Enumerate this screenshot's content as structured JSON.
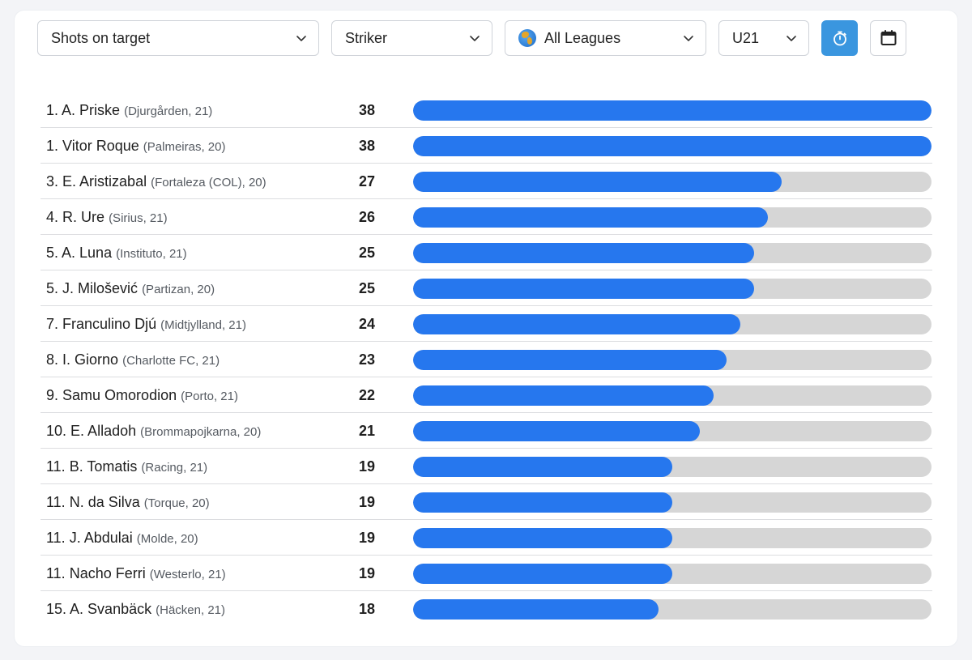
{
  "filters": {
    "metric": "Shots on target",
    "position": "Striker",
    "league": "All Leagues",
    "age": "U21"
  },
  "icons": {
    "league": "globe-icon",
    "timer": "stopwatch-icon",
    "calendar": "calendar-icon",
    "dropdown": "chevron-down-icon"
  },
  "colors": {
    "bar_fill": "#2677ee",
    "bar_track": "#d6d6d6",
    "active_button": "#3a96df"
  },
  "max_value": 38,
  "players": [
    {
      "rank": "1.",
      "name": "A. Priske",
      "club": "(Djurgården, 21)",
      "value": 38
    },
    {
      "rank": "1.",
      "name": "Vitor Roque",
      "club": "(Palmeiras, 20)",
      "value": 38
    },
    {
      "rank": "3.",
      "name": "E. Aristizabal",
      "club": "(Fortaleza (COL), 20)",
      "value": 27
    },
    {
      "rank": "4.",
      "name": "R. Ure",
      "club": "(Sirius, 21)",
      "value": 26
    },
    {
      "rank": "5.",
      "name": "A. Luna",
      "club": "(Instituto, 21)",
      "value": 25
    },
    {
      "rank": "5.",
      "name": "J. Milošević",
      "club": "(Partizan, 20)",
      "value": 25
    },
    {
      "rank": "7.",
      "name": "Franculino Djú",
      "club": "(Midtjylland, 21)",
      "value": 24
    },
    {
      "rank": "8.",
      "name": "I. Giorno",
      "club": "(Charlotte FC, 21)",
      "value": 23
    },
    {
      "rank": "9.",
      "name": "Samu Omorodion",
      "club": "(Porto, 21)",
      "value": 22
    },
    {
      "rank": "10.",
      "name": "E. Alladoh",
      "club": "(Brommapojkarna, 20)",
      "value": 21
    },
    {
      "rank": "11.",
      "name": "B. Tomatis",
      "club": "(Racing, 21)",
      "value": 19
    },
    {
      "rank": "11.",
      "name": "N. da Silva",
      "club": "(Torque, 20)",
      "value": 19
    },
    {
      "rank": "11.",
      "name": "J. Abdulai",
      "club": "(Molde, 20)",
      "value": 19
    },
    {
      "rank": "11.",
      "name": "Nacho Ferri",
      "club": "(Westerlo, 21)",
      "value": 19
    },
    {
      "rank": "15.",
      "name": "A. Svanbäck",
      "club": "(Häcken, 21)",
      "value": 18
    }
  ]
}
